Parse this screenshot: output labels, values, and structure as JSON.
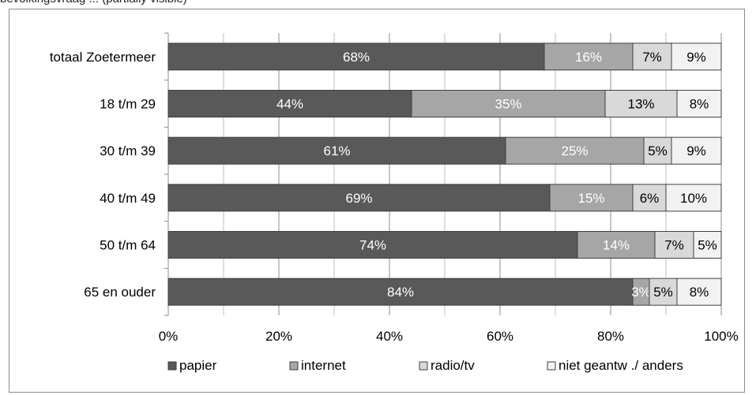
{
  "header": {
    "partial_text": "bevolkingsvraag ... (partially visible)"
  },
  "chart_data": {
    "type": "bar",
    "orientation": "horizontal",
    "stacked": true,
    "percent": true,
    "categories": [
      "totaal Zoetermeer",
      "18 t/m 29",
      "30 t/m 39",
      "40 t/m 49",
      "50 t/m 64",
      "65 en ouder"
    ],
    "series": [
      {
        "name": "papier",
        "values": [
          68,
          44,
          61,
          69,
          74,
          84
        ],
        "color": "#595959",
        "label_color": "#ffffff",
        "labels": [
          "68%",
          "44%",
          "61%",
          "69%",
          "74%",
          "84%"
        ]
      },
      {
        "name": "internet",
        "values": [
          16,
          35,
          25,
          15,
          14,
          3
        ],
        "color": "#a6a6a6",
        "label_color": "#ffffff",
        "labels": [
          "16%",
          "35%",
          "25%",
          "15%",
          "14%",
          "3%"
        ]
      },
      {
        "name": "radio/tv",
        "values": [
          7,
          13,
          5,
          6,
          7,
          5
        ],
        "color": "#d9d9d9",
        "label_color": "#000000",
        "labels": [
          "7%",
          "13%",
          "5%",
          "6%",
          "7%",
          "5%"
        ]
      },
      {
        "name": "niet geantw ./ anders",
        "values": [
          9,
          8,
          9,
          10,
          5,
          8
        ],
        "color": "#f2f2f2",
        "label_color": "#000000",
        "labels": [
          "9%",
          "8%",
          "9%",
          "10%",
          "5%",
          "8%"
        ]
      }
    ],
    "xlim": [
      0,
      100
    ],
    "x_ticks": [
      "0%",
      "20%",
      "40%",
      "60%",
      "80%",
      "100%"
    ],
    "x_tick_values": [
      0,
      20,
      40,
      60,
      80,
      100
    ],
    "grid": true,
    "legend_position": "bottom"
  }
}
